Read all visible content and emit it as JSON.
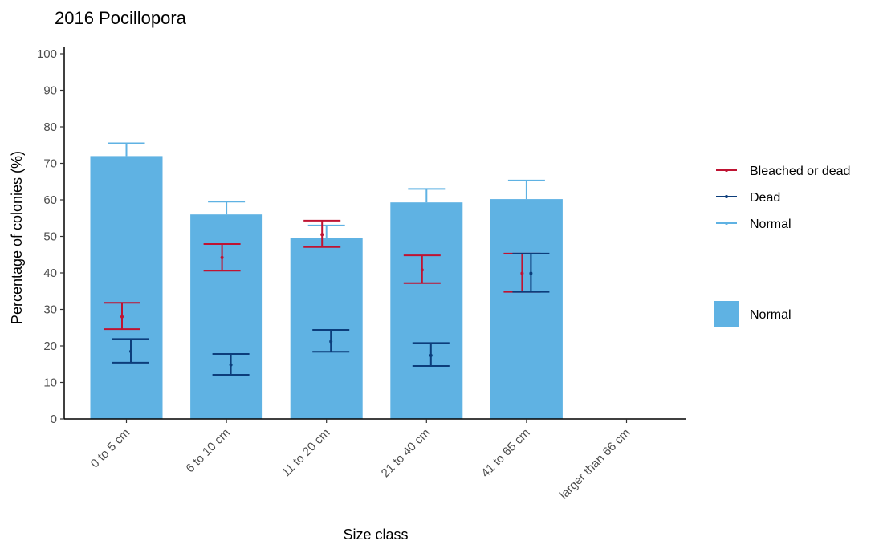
{
  "chart_data": {
    "type": "bar",
    "title": "2016 Pocillopora",
    "xlabel": "Size class",
    "ylabel": "Percentage of colonies (%)",
    "ylim": [
      0,
      100
    ],
    "yticks": [
      0,
      10,
      20,
      30,
      40,
      50,
      60,
      70,
      80,
      90,
      100
    ],
    "grid": false,
    "legend_position": "right",
    "categories": [
      "0 to 5 cm",
      "6 to 10 cm",
      "11 to 20 cm",
      "21 to 40 cm",
      "41 to 65 cm",
      "larger than 66 cm"
    ],
    "bars": {
      "name": "Normal",
      "color": "#5fb2e3",
      "values": [
        72,
        56,
        49.5,
        59.3,
        60.2,
        null
      ],
      "upper": [
        75.5,
        59.5,
        53,
        63,
        65.3,
        null
      ]
    },
    "series": [
      {
        "name": "Bleached or dead",
        "color": "#bf1332",
        "values": [
          28,
          44.2,
          50.5,
          40.8,
          39.9,
          null
        ],
        "lower": [
          24.6,
          40.6,
          47.1,
          37.2,
          34.8,
          null
        ],
        "upper": [
          31.8,
          47.9,
          54.3,
          44.8,
          45.3,
          null
        ]
      },
      {
        "name": "Dead",
        "color": "#0c3d7b",
        "values": [
          18.5,
          14.8,
          21.2,
          17.4,
          39.9,
          null
        ],
        "lower": [
          15.4,
          12.1,
          18.4,
          14.5,
          34.8,
          null
        ],
        "upper": [
          21.9,
          17.8,
          24.4,
          20.8,
          45.3,
          null
        ]
      },
      {
        "name": "Normal",
        "color": "#5fb2e3",
        "values": [
          72,
          56,
          49.5,
          59.3,
          60.2,
          null
        ],
        "upper": [
          75.5,
          59.5,
          53,
          63,
          65.3,
          null
        ]
      }
    ],
    "legend": {
      "lines": [
        "Bleached or dead",
        "Dead",
        "Normal"
      ],
      "fill": [
        "Normal"
      ]
    }
  }
}
